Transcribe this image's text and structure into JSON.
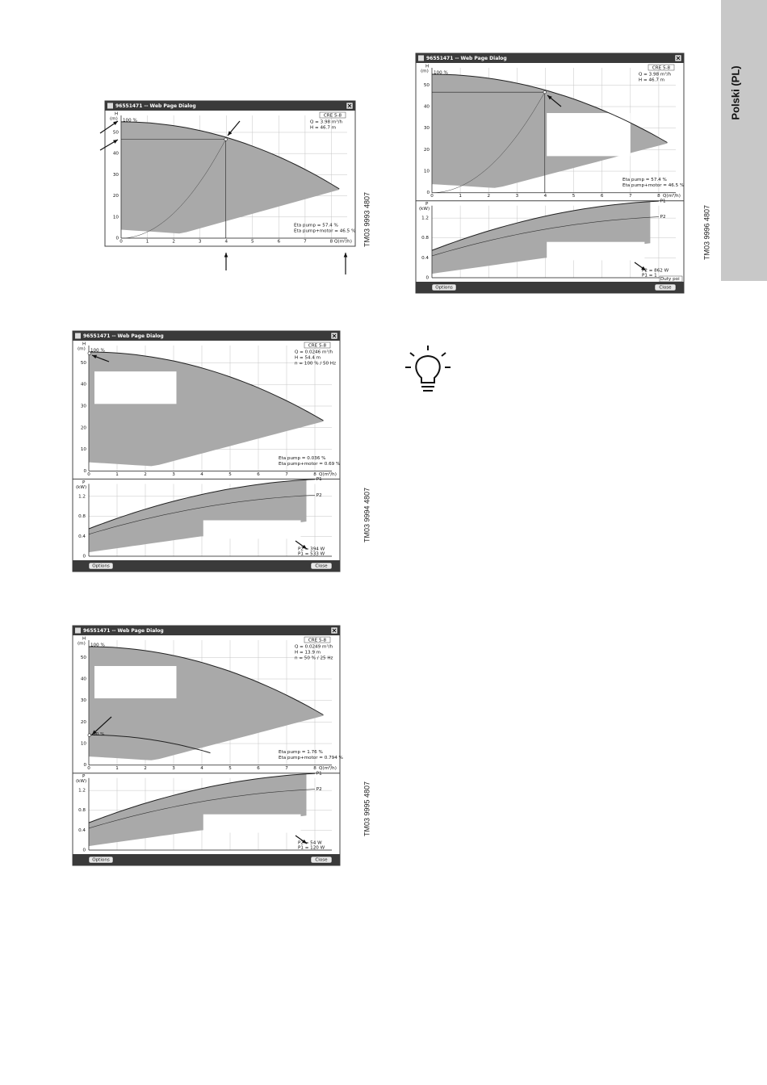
{
  "side_tab": "Polski (PL)",
  "figures": [
    {
      "code": "TM03 9993 4807",
      "dialog": {
        "title": "96551471 -- Web Page Dialog",
        "pump": "CRE 5-8",
        "h_label": "H",
        "h_unit": "(m)",
        "h_ticks": [
          0,
          10,
          20,
          30,
          40,
          50
        ],
        "q_label": "Q(m³/h)",
        "q_ticks": [
          0,
          1,
          2,
          3,
          4,
          5,
          6,
          7,
          8
        ],
        "speed": "100 %",
        "info": [
          "Q = 3.98 m³/h",
          "H = 46.7 m"
        ],
        "eta": [
          "Eta pump = 57.4 %",
          "Eta pump+motor = 46.5 %"
        ]
      }
    },
    {
      "code": "TM03 9996 4807",
      "dialog": {
        "title": "96551471 -- Web Page Dialog",
        "pump": "CRE 5-8",
        "h_label": "H",
        "h_unit": "(m)",
        "h_ticks": [
          0,
          10,
          20,
          30,
          40,
          50
        ],
        "q_label": "Q(m³/h)",
        "q_ticks": [
          0,
          1,
          2,
          3,
          4,
          5,
          6,
          7,
          8
        ],
        "speed": "100 %",
        "info": [
          "Q = 3.98 m³/h",
          "H = 46.7 m"
        ],
        "eta": [
          "Eta pump = 57.4 %",
          "Eta pump+motor = 46.5 %"
        ],
        "p_label": "P",
        "p_unit": "(kW)",
        "p_ticks": [
          0,
          0.4,
          0.8,
          1.2
        ],
        "p_series": [
          "P1",
          "P2"
        ],
        "power": [
          "P2 = 862 W",
          "P1 = 1"
        ],
        "duty": "Duty poi",
        "buttons": [
          "Options",
          "Close"
        ]
      }
    },
    {
      "code": "TM03 9994 4807",
      "dialog": {
        "title": "96551471 -- Web Page Dialog",
        "pump": "CRE 5-8",
        "h_label": "H",
        "h_unit": "(m)",
        "h_ticks": [
          0,
          10,
          20,
          30,
          40,
          50
        ],
        "q_label": "Q(m³/h)",
        "q_ticks": [
          0,
          1,
          2,
          3,
          4,
          5,
          6,
          7,
          8
        ],
        "speed": "100 %",
        "info": [
          "Q = 0.0246 m³/h",
          "H = 54.4 m",
          "n = 100 % / 50 Hz"
        ],
        "eta": [
          "Eta pump = 0.036 %",
          "Eta pump+motor = 0.69 %"
        ],
        "p_label": "P",
        "p_unit": "(kW)",
        "p_ticks": [
          0,
          0.4,
          0.8,
          1.2
        ],
        "p_series": [
          "P1",
          "P2"
        ],
        "power": [
          "P2 = 394 W",
          "P1 = 533 W"
        ],
        "buttons": [
          "Options",
          "Close"
        ]
      }
    },
    {
      "code": "TM03 9995 4807",
      "dialog": {
        "title": "96551471 -- Web Page Dialog",
        "pump": "CRE 5-8",
        "h_label": "H",
        "h_unit": "(m)",
        "h_ticks": [
          0,
          10,
          20,
          30,
          40,
          50
        ],
        "q_label": "Q(m³/h)",
        "q_ticks": [
          0,
          1,
          2,
          3,
          4,
          5,
          6,
          7,
          8
        ],
        "speed": "100 %",
        "speed2": "50 %",
        "info": [
          "Q = 0.0249 m³/h",
          "H = 13.9 m",
          "n = 50 % / 25 Hz"
        ],
        "eta": [
          "Eta pump = 1.76 %",
          "Eta pump+motor = 0.794 %"
        ],
        "p_label": "P",
        "p_unit": "(kW)",
        "p_ticks": [
          0,
          0.4,
          0.8,
          1.2
        ],
        "p_series": [
          "P1",
          "P2"
        ],
        "power": [
          "P2 = 54 W",
          "P1 = 120 W"
        ],
        "buttons": [
          "Options",
          "Close"
        ]
      }
    }
  ]
}
